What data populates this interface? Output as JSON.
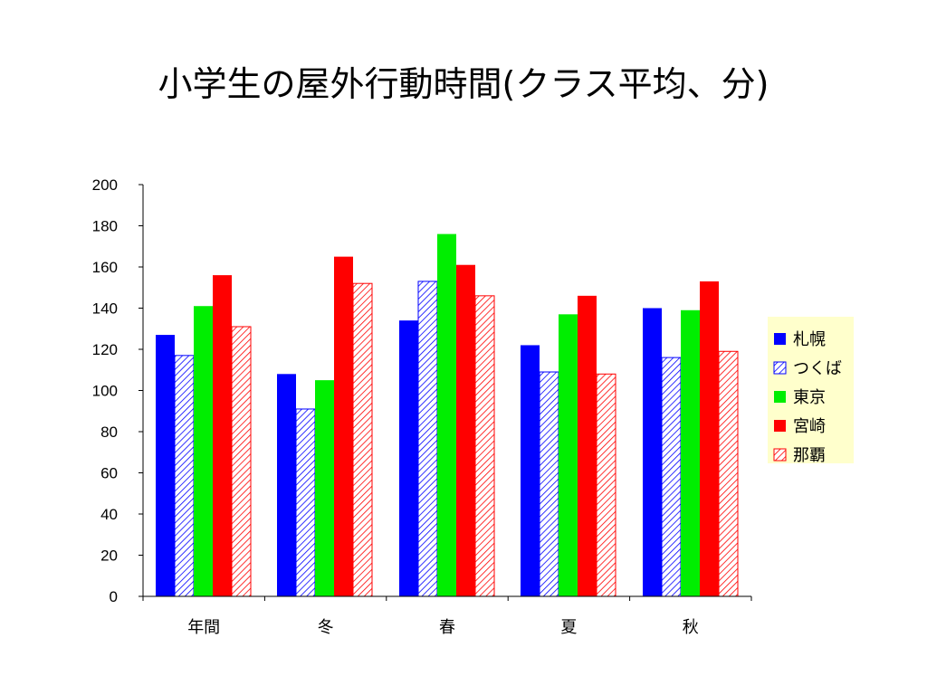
{
  "title": "小学生の屋外行動時間(クラス平均、分)",
  "chart_data": {
    "type": "bar",
    "categories": [
      "年間",
      "冬",
      "春",
      "夏",
      "秋"
    ],
    "series": [
      {
        "name": "札幌",
        "values": [
          127,
          108,
          134,
          122,
          140
        ],
        "color": "#0000ff",
        "hatched": false
      },
      {
        "name": "つくば",
        "values": [
          117,
          91,
          153,
          109,
          116
        ],
        "color": "#0000ff",
        "hatched": true
      },
      {
        "name": "東京",
        "values": [
          141,
          105,
          176,
          137,
          139
        ],
        "color": "#00ee00",
        "hatched": false
      },
      {
        "name": "宮崎",
        "values": [
          156,
          165,
          161,
          146,
          153
        ],
        "color": "#ff0000",
        "hatched": false
      },
      {
        "name": "那覇",
        "values": [
          131,
          152,
          146,
          108,
          119
        ],
        "color": "#ff0000",
        "hatched": true
      }
    ],
    "ylim": [
      0,
      200
    ],
    "yticks": [
      0,
      20,
      40,
      60,
      80,
      100,
      120,
      140,
      160,
      180,
      200
    ],
    "grid": false,
    "legend_position": "right",
    "legend_background": "#ffffcc"
  }
}
